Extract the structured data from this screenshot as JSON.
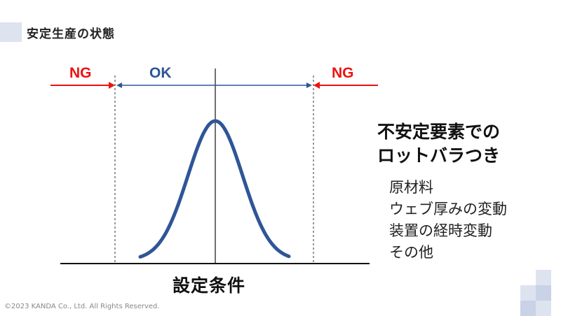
{
  "header": {
    "title": "安定生産の状態"
  },
  "diagram": {
    "ng_left_label": "NG",
    "ok_label": "OK",
    "ng_right_label": "NG",
    "x_axis_label": "設定条件"
  },
  "sidebar": {
    "heading_line1": "不安定要素での",
    "heading_line2": "ロットバラつき",
    "items": [
      {
        "label": "原材料"
      },
      {
        "label": "ウェブ厚みの変動"
      },
      {
        "label": "装置の経時変動"
      },
      {
        "label": "その他"
      }
    ]
  },
  "footer": {
    "copyright": "©2023 KANDA Co., Ltd. All Rights Reserved."
  },
  "colors": {
    "ng": "#ee1111",
    "ok": "#2f5597",
    "curve": "#2f5597",
    "accent_light": "#dde3ef",
    "accent_mid": "#c9d2e6"
  }
}
